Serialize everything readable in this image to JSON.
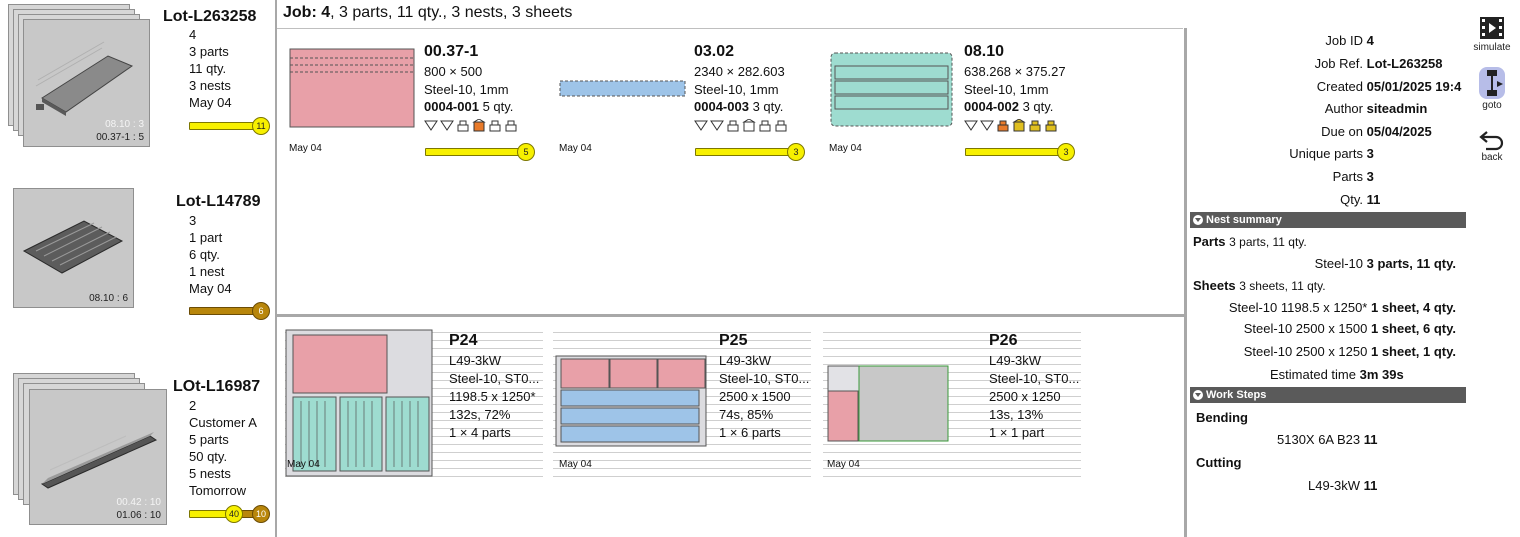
{
  "header": {
    "job_label": "Job:",
    "job_id": "4",
    "summary": ", 3 parts, 11 qty., 3 nests, 3 sheets"
  },
  "lots": [
    {
      "name": "Lot-L263258",
      "line1": "4",
      "parts": "3 parts",
      "qty": "11 qty.",
      "nests": "3 nests",
      "date": "May 04",
      "progress": "11",
      "code": "00.37-1 : 5",
      "ghost": "08.10 : 3"
    },
    {
      "name": "Lot-L14789",
      "line1": "3",
      "parts": "1 part",
      "qty": "6 qty.",
      "nests": "1 nest",
      "date": "May 04",
      "progress": "6",
      "code": "08.10 : 6"
    },
    {
      "name": "LOt-L16987",
      "line1": "2",
      "customer": "Customer A",
      "parts": "5 parts",
      "qty": "50 qty.",
      "nests": "5 nests",
      "date": "Tomorrow",
      "progress_a": "40",
      "progress_b": "10",
      "code": "01.06 : 10",
      "ghost": "00.42 : 10"
    }
  ],
  "parts": [
    {
      "title": "00.37-1",
      "dims": "800 × 500",
      "material": "Steel-10, 1mm",
      "ref": "0004-001",
      "qty": " 5 qty.",
      "date": "May 04",
      "progress": "5",
      "fill": "#e8a0a8"
    },
    {
      "title": "03.02",
      "dims": "2340 × 282.603",
      "material": "Steel-10, 1mm",
      "ref": "0004-003",
      "qty": " 3 qty.",
      "date": "May 04",
      "progress": "3",
      "fill": "#9ec4e8"
    },
    {
      "title": "08.10",
      "dims": "638.268 × 375.27",
      "material": "Steel-10, 1mm",
      "ref": "0004-002",
      "qty": " 3 qty.",
      "date": "May 04",
      "progress": "3",
      "fill": "#9edcd0"
    }
  ],
  "nests": [
    {
      "title": "P24",
      "machine": "L49-3kW",
      "material": "Steel-10, ST0...",
      "sheet": "1198.5 x 1250*",
      "time": "132s, 72%",
      "count": "1 × 4 parts",
      "date": "May 04"
    },
    {
      "title": "P25",
      "machine": "L49-3kW",
      "material": "Steel-10, ST0...",
      "sheet": "2500 x 1500",
      "time": "74s, 85%",
      "count": "1 × 6 parts",
      "date": "May 04"
    },
    {
      "title": "P26",
      "machine": "L49-3kW",
      "material": "Steel-10, ST0...",
      "sheet": "2500 x 1250",
      "time": "13s, 13%",
      "count": "1 × 1 part",
      "date": "May 04"
    }
  ],
  "info": {
    "job_id": {
      "k": "Job ID",
      "v": "4"
    },
    "job_ref": {
      "k": "Job Ref.",
      "v": "Lot-L263258"
    },
    "created": {
      "k": "Created",
      "v": "05/01/2025 19:4"
    },
    "author": {
      "k": "Author",
      "v": "siteadmin"
    },
    "due": {
      "k": "Due on",
      "v": "05/04/2025"
    },
    "unique": {
      "k": "Unique parts",
      "v": "3"
    },
    "parts": {
      "k": "Parts",
      "v": "3"
    },
    "qty": {
      "k": "Qty.",
      "v": "11"
    }
  },
  "nest_summary": {
    "label": "Nest summary",
    "parts_label": "Parts",
    "parts_value": "3 parts, 11 qty.",
    "parts_mat": "Steel-10",
    "parts_mat_val": "3 parts, 11 qty.",
    "sheets_label": "Sheets",
    "sheets_value": "3 sheets, 11 qty.",
    "sheet1": "Steel-10 1198.5 x 1250*",
    "sheet1_val": "1 sheet, 4 qty.",
    "sheet2": "Steel-10 2500 x 1500",
    "sheet2_val": "1 sheet, 6 qty.",
    "sheet3": "Steel-10 2500 x 1250",
    "sheet3_val": "1 sheet, 1 qty.",
    "est_label": "Estimated time",
    "est_value": "3m 39s"
  },
  "work_steps": {
    "label": "Work Steps",
    "bending": "Bending",
    "bending_item": "5130X 6A B23",
    "bending_val": "11",
    "cutting": "Cutting",
    "cutting_item": "L49-3kW",
    "cutting_val": "11"
  },
  "toolbar": {
    "simulate": "simulate",
    "goto": "goto",
    "back": "back"
  }
}
